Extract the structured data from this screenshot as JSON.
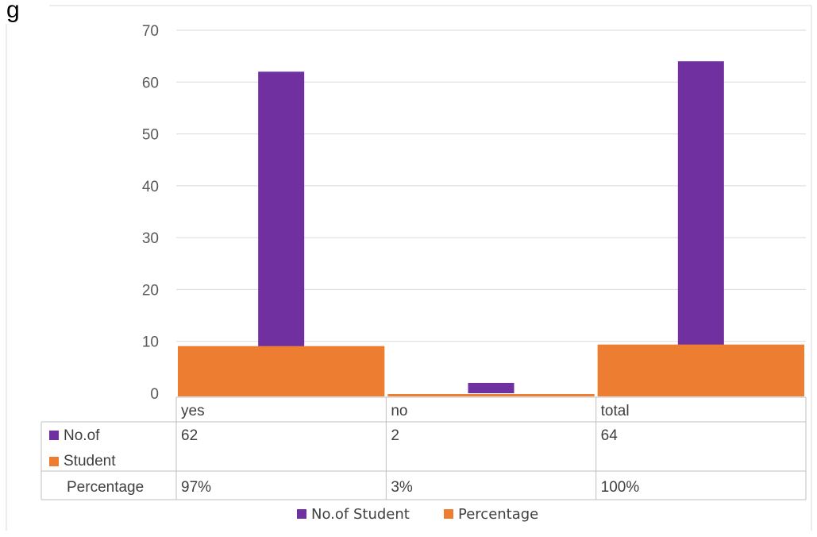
{
  "colors": {
    "students": "#7030a0",
    "percentage": "#ed7d31",
    "grid": "#d9d9d9",
    "text": "#404040"
  },
  "title_fragment": "g",
  "chart_data": {
    "type": "bar",
    "categories": [
      "yes",
      "no",
      "total"
    ],
    "series": [
      {
        "name": "No.of Student",
        "values": [
          62,
          2,
          64
        ],
        "color": "#7030a0"
      },
      {
        "name": "Percentage",
        "values": [
          0.97,
          0.03,
          1.0
        ],
        "color": "#ed7d31"
      }
    ],
    "data_table": {
      "rows": [
        {
          "label": "No.of Student",
          "label_lines": [
            "No.of",
            "Student"
          ],
          "cells": [
            "62",
            "2",
            "64"
          ],
          "marker_color": "#7030a0"
        },
        {
          "label": "Percentage",
          "label_lines": [
            "Percentage"
          ],
          "cells": [
            "97%",
            "3%",
            "100%"
          ],
          "marker_color": "#ed7d31"
        }
      ]
    },
    "yticks": [
      "0",
      "10",
      "20",
      "30",
      "40",
      "50",
      "60",
      "70"
    ],
    "ylim": [
      0,
      70
    ],
    "grid": true,
    "legend_position": "bottom"
  }
}
